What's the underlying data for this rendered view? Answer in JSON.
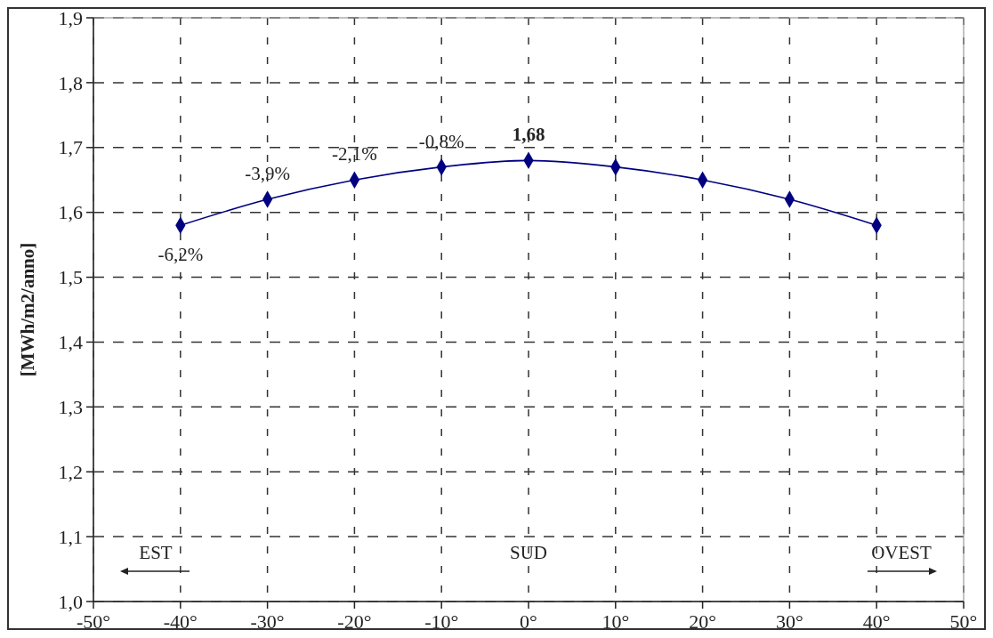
{
  "chart_data": {
    "type": "line",
    "ylabel": "[MWh/m2/anno]",
    "x": [
      -40,
      -30,
      -20,
      -10,
      0,
      10,
      20,
      30,
      40
    ],
    "series": [
      {
        "color": "#000080",
        "values": [
          1.58,
          1.62,
          1.65,
          1.67,
          1.68,
          1.67,
          1.65,
          1.62,
          1.58
        ],
        "value_labels": [
          null,
          null,
          null,
          null,
          "1,68",
          null,
          null,
          null,
          null
        ]
      }
    ],
    "xlim": [
      -50,
      50
    ],
    "xticks": [
      {
        "value": -50,
        "label": "-50°"
      },
      {
        "value": -40,
        "label": "-40°"
      },
      {
        "value": -30,
        "label": "-30°"
      },
      {
        "value": -20,
        "label": "-20°"
      },
      {
        "value": -10,
        "label": "-10°"
      },
      {
        "value": 0,
        "label": "0°"
      },
      {
        "value": 10,
        "label": "10°"
      },
      {
        "value": 20,
        "label": "20°"
      },
      {
        "value": 30,
        "label": "30°"
      },
      {
        "value": 40,
        "label": "40°"
      },
      {
        "value": 50,
        "label": "50°"
      }
    ],
    "ylim": [
      1.0,
      1.9
    ],
    "yticks": [
      {
        "value": 1.0,
        "label": "1,0"
      },
      {
        "value": 1.1,
        "label": "1,1"
      },
      {
        "value": 1.2,
        "label": "1,2"
      },
      {
        "value": 1.3,
        "label": "1,3"
      },
      {
        "value": 1.4,
        "label": "1,4"
      },
      {
        "value": 1.5,
        "label": "1,5"
      },
      {
        "value": 1.6,
        "label": "1,6"
      },
      {
        "value": 1.7,
        "label": "1,7"
      },
      {
        "value": 1.8,
        "label": "1,8"
      },
      {
        "value": 1.9,
        "label": "1,9"
      }
    ],
    "annotations": [
      {
        "text": "-6,2%",
        "x": -40,
        "y": 1.58
      },
      {
        "text": "-3,9%",
        "x": -30,
        "y": 1.62
      },
      {
        "text": "-2,1%",
        "x": -20,
        "y": 1.65
      },
      {
        "text": "-0,8%",
        "x": -10,
        "y": 1.67
      },
      "EST",
      "SUD",
      "OVEST"
    ],
    "grid": true,
    "marker": "diamond",
    "line_style": "solid"
  }
}
